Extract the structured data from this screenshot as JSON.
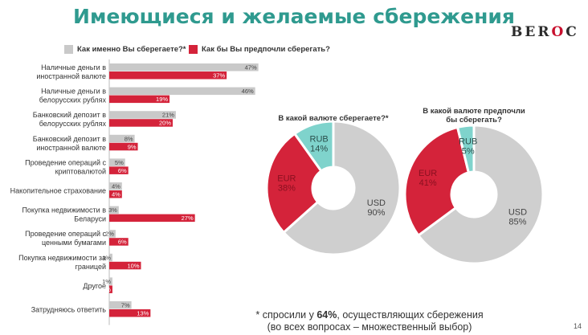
{
  "slide": {
    "title": "Имеющиеся и желаемые сбережения",
    "logo": {
      "before": "BER",
      "highlight": "O",
      "after": "C"
    },
    "page_number": "14"
  },
  "colors": {
    "current": "#c9c9c9",
    "preferred": "#d4233a",
    "rub": "#7fd3cc",
    "accent_title": "#2f9a8f"
  },
  "legend": {
    "current": "Как именно Вы сберегаете?*",
    "preferred": "Как бы Вы предпочли сберегать?"
  },
  "footnote": {
    "line1_before": "* спросили у ",
    "line1_bold": "64%",
    "line1_after": ", осуществляющих сбережения",
    "line2": "(во всех вопросах – множественный выбор)"
  },
  "chart_data": [
    {
      "type": "bar",
      "orientation": "horizontal",
      "categories": [
        [
          "Наличные деньги в",
          "иностранной валюте"
        ],
        [
          "Наличные деньги в",
          "белорусских рублях"
        ],
        [
          "Банковский депозит в",
          "белорусских рублях"
        ],
        [
          "Банковский депозит в",
          "иностранной валюте"
        ],
        [
          "Проведение операций с",
          "криптовалютой"
        ],
        [
          "Накопительное страхование"
        ],
        [
          "Покупка недвижимости в",
          "Беларуси"
        ],
        [
          "Проведение операций с",
          "ценными бумагами"
        ],
        [
          "Покупка недвижимости за",
          "границей"
        ],
        [
          "Другое"
        ],
        [
          "Затрудняюсь ответить"
        ]
      ],
      "series": [
        {
          "name": "Как именно Вы сберегаете?*",
          "values": [
            47,
            46,
            21,
            8,
            5,
            4,
            3,
            2,
            1,
            1,
            7
          ],
          "labels": [
            "47%",
            "46%",
            "21%",
            "8%",
            "5%",
            "4%",
            "3%",
            "2%",
            "1%",
            "1%",
            "7%"
          ]
        },
        {
          "name": "Как бы Вы предпочли сберегать?",
          "values": [
            37,
            19,
            20,
            9,
            6,
            4,
            27,
            6,
            10,
            1,
            13
          ],
          "labels": [
            "37%",
            "19%",
            "20%",
            "9%",
            "6%",
            "4%",
            "27%",
            "6%",
            "10%",
            "1%",
            "13%"
          ]
        }
      ]
    },
    {
      "type": "pie",
      "donut": true,
      "title": "В какой валюте сберегаете?*",
      "slices": [
        {
          "name": "USD",
          "value": 90,
          "label": "90%"
        },
        {
          "name": "EUR",
          "value": 38,
          "label": "38%"
        },
        {
          "name": "RUB",
          "value": 14,
          "label": "14%"
        }
      ]
    },
    {
      "type": "pie",
      "donut": true,
      "title": "В какой валюте предпочли бы сберегать?",
      "slices": [
        {
          "name": "USD",
          "value": 85,
          "label": "85%"
        },
        {
          "name": "EUR",
          "value": 41,
          "label": "41%"
        },
        {
          "name": "RUB",
          "value": 5,
          "label": "5%"
        }
      ]
    }
  ]
}
